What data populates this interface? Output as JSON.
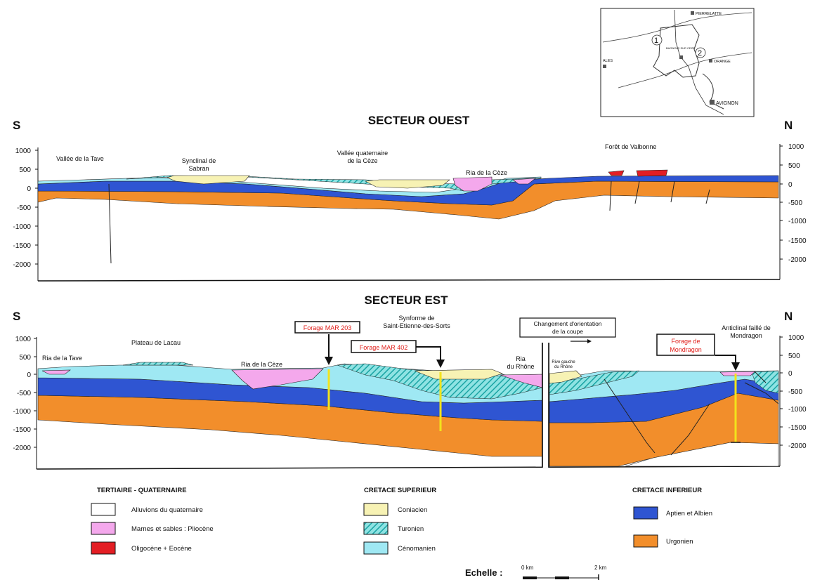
{
  "colors": {
    "alluvions": "#ffffff",
    "pliocene": "#f4a8ec",
    "oligocene": "#e31e24",
    "coniacien": "#f7f2b4",
    "turonien": "#33bfbf",
    "turonien_hatch": "#8fe3e3",
    "cenomanien": "#9fe8f3",
    "aptien": "#2f55d2",
    "urgonien": "#f28e2b",
    "forage_pole": "#f2e31c",
    "forage_text": "#e0201c"
  },
  "inset_map": {
    "places": [
      "PIERRELATTE",
      "ORANGE",
      "AVIGNON",
      "ALES",
      "BAGNOLS SUR CEZE"
    ],
    "section_numbers": [
      "1",
      "2"
    ]
  },
  "ouest": {
    "title": "SECTEUR OUEST",
    "left_dir": "S",
    "right_dir": "N",
    "left_ticks": [
      "1000",
      "500",
      "0",
      "-500",
      "-1000",
      "-1500",
      "-2000"
    ],
    "right_ticks": [
      "1000",
      "500",
      "0",
      "-500",
      "-1000",
      "-1500",
      "-2000"
    ],
    "labels": {
      "tave": "Vallée de la Tave",
      "sabran": [
        "Synclinal de",
        "Sabran"
      ],
      "ceze_valley": [
        "Vallée quaternaire",
        "de la Cèze"
      ],
      "ria_ceze": "Ria de la Cèze",
      "valbonne": "Forêt de Valbonne"
    }
  },
  "est": {
    "title": "SECTEUR EST",
    "left_dir": "S",
    "right_dir": "N",
    "left_ticks": [
      "1000",
      "500",
      "0",
      "-500",
      "-1000",
      "-1500",
      "-2000"
    ],
    "right_ticks": [
      "1000",
      "500",
      "0",
      "-500",
      "-1000",
      "-1500",
      "-2000"
    ],
    "labels": {
      "ria_tave": "Ria de la Tave",
      "lacau": "Plateau de Lacau",
      "ria_ceze": "Ria de la Cèze",
      "synforme": [
        "Synforme de",
        "Saint-Etienne-des-Sorts"
      ],
      "ria_rhone": [
        "Ria",
        "du Rhône"
      ],
      "rive_gauche": [
        "Rive gauche",
        "du Rhône"
      ],
      "changement": [
        "Changement d'orientation",
        "de la coupe"
      ],
      "anticlinal": [
        "Anticlinal faillé de",
        "Mondragon"
      ]
    },
    "forages": {
      "mar203": "Forage MAR 203",
      "mar402": "Forage MAR 402",
      "mondragon": [
        "Forage de",
        "Mondragon"
      ]
    }
  },
  "legend": {
    "groups": [
      {
        "heading": "TERTIAIRE - QUATERNAIRE",
        "items": [
          {
            "label": "Alluvions du quaternaire",
            "color": "#ffffff"
          },
          {
            "label": "Marnes et sables : Pliocène",
            "color": "#f4a8ec"
          },
          {
            "label": "Oligocène + Eocène",
            "color": "#e31e24"
          }
        ]
      },
      {
        "heading": "CRETACE SUPERIEUR",
        "items": [
          {
            "label": "Coniacien",
            "color": "#f7f2b4"
          },
          {
            "label": "Turonien",
            "color": "#33bfbf"
          },
          {
            "label": "Cénomanien",
            "color": "#9fe8f3"
          }
        ]
      },
      {
        "heading": "CRETACE INFERIEUR",
        "items": [
          {
            "label": "Aptien et Albien",
            "color": "#2f55d2"
          },
          {
            "label": "Urgonien",
            "color": "#f28e2b"
          }
        ]
      }
    ]
  },
  "scale": {
    "label": "Echelle :",
    "start": "0 km",
    "end": "2 km"
  }
}
